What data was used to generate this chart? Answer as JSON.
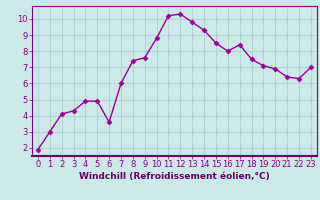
{
  "x": [
    0,
    1,
    2,
    3,
    4,
    5,
    6,
    7,
    8,
    9,
    10,
    11,
    12,
    13,
    14,
    15,
    16,
    17,
    18,
    19,
    20,
    21,
    22,
    23
  ],
  "y": [
    1.9,
    3.0,
    4.1,
    4.3,
    4.9,
    4.9,
    3.6,
    6.0,
    7.4,
    7.6,
    8.8,
    10.2,
    10.3,
    9.8,
    9.3,
    8.5,
    8.0,
    8.4,
    7.5,
    7.1,
    6.9,
    6.4,
    6.3,
    7.0
  ],
  "line_color": "#990099",
  "marker": "D",
  "markersize": 2.5,
  "linewidth": 1.0,
  "bg_color": "#cce8e8",
  "plot_bg_color": "#cce8e8",
  "grid_color": "#aacccc",
  "xlabel": "Windchill (Refroidissement éolien,°C)",
  "xlim": [
    -0.5,
    23.5
  ],
  "ylim": [
    1.5,
    10.8
  ],
  "yticks": [
    2,
    3,
    4,
    5,
    6,
    7,
    8,
    9,
    10
  ],
  "xticks": [
    0,
    1,
    2,
    3,
    4,
    5,
    6,
    7,
    8,
    9,
    10,
    11,
    12,
    13,
    14,
    15,
    16,
    17,
    18,
    19,
    20,
    21,
    22,
    23
  ],
  "tick_color": "#880088",
  "label_color": "#660066",
  "xlabel_fontsize": 6.5,
  "tick_fontsize": 6.0,
  "spine_color": "#880088",
  "bottom_bar_color": "#660066"
}
